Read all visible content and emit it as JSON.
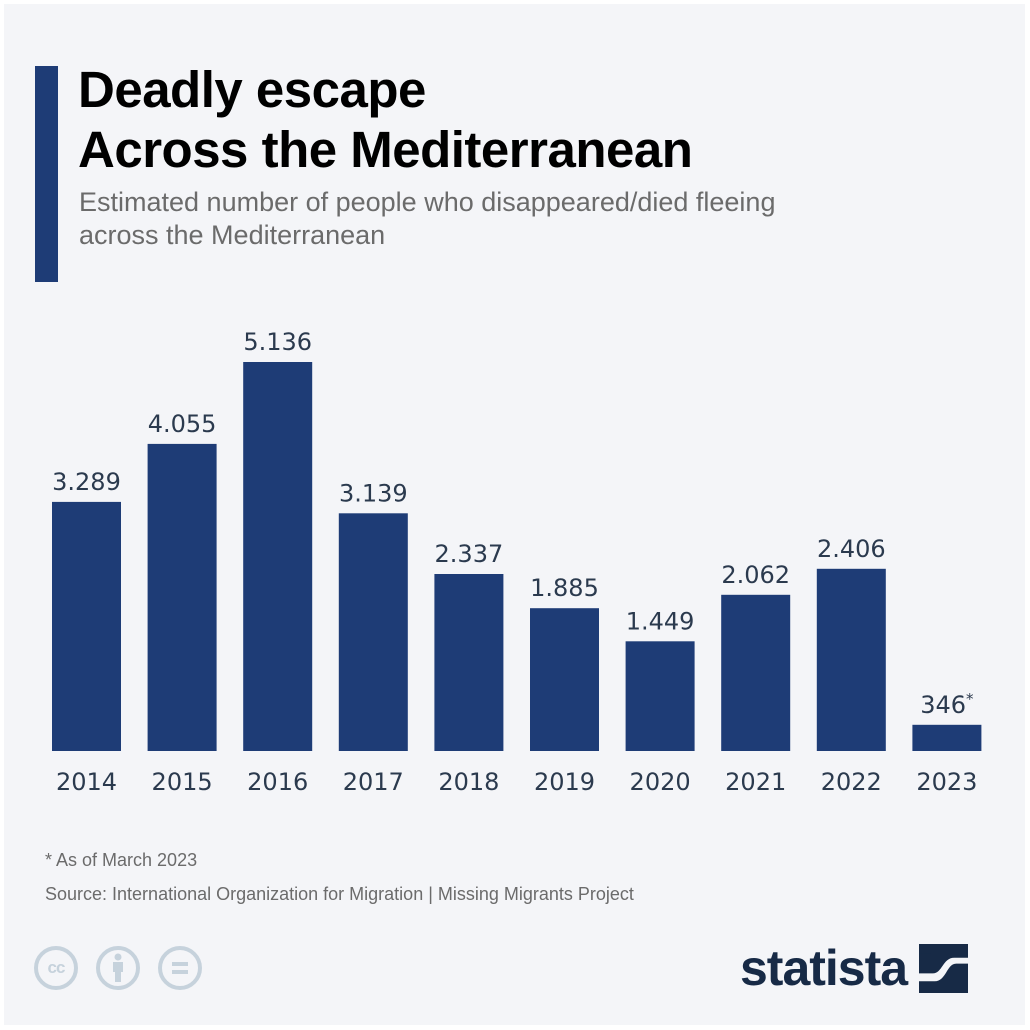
{
  "header": {
    "title_line1": "Deadly escape",
    "title_line2": "Across the Mediterranean",
    "subtitle_line1": "Estimated number of people who disappeared/died fleeing",
    "subtitle_line2": "across the Mediterranean"
  },
  "colors": {
    "accent": "#1e3c76",
    "bar": "#1e3c76",
    "label": "#2b3a4e",
    "background": "#f4f5f8"
  },
  "chart_data": {
    "type": "bar",
    "title": "Deadly escape Across the Mediterranean",
    "subtitle": "Estimated number of people who disappeared/died fleeing across the Mediterranean",
    "xlabel": "",
    "ylabel": "",
    "categories": [
      "2014",
      "2015",
      "2016",
      "2017",
      "2018",
      "2019",
      "2020",
      "2021",
      "2022",
      "2023"
    ],
    "values": [
      3289,
      4055,
      5136,
      3139,
      2337,
      1885,
      1449,
      2062,
      2406,
      346
    ],
    "value_labels": [
      "3.289",
      "4.055",
      "5.136",
      "3.139",
      "2.337",
      "1.885",
      "1.449",
      "2.062",
      "2.406",
      "346"
    ],
    "value_label_suffixes": [
      "",
      "",
      "",
      "",
      "",
      "",
      "",
      "",
      "",
      "*"
    ],
    "ylim": [
      0,
      5136
    ],
    "grid": false,
    "legend": "none"
  },
  "footer": {
    "note": "* As of March 2023",
    "source": "Source: International Organization for Migration | Missing Migrants Project",
    "license_icons": [
      "cc-icon",
      "attribution-icon",
      "no-derivatives-icon"
    ],
    "cc_text": "cc",
    "logo_text": "statista"
  }
}
